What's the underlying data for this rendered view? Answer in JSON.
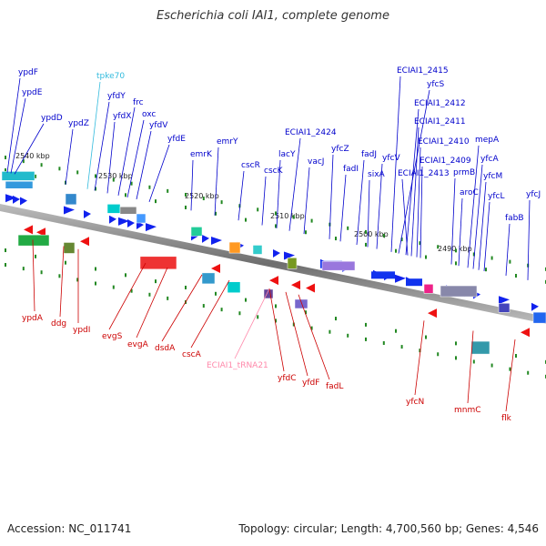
{
  "title": "Escherichia coli IAI1, complete genome",
  "footer": {
    "accession": "Accession: NC_011741",
    "summary": "Topology: circular; Length: 4,700,560 bp; Genes: 4,546"
  },
  "colors": {
    "forward_label": "#0000cc",
    "reverse_label": "#cc0000",
    "trna_label": "#ff88aa",
    "other_label": "#33bbdd",
    "backbone": "#808080",
    "tick": "#228822"
  },
  "scale_labels": [
    "2540 kbp",
    "2530 kbp",
    "2520 kbp",
    "2510 kbp",
    "2500 kbp",
    "2490 kbp"
  ],
  "top_labels": [
    "ypdF",
    "ypdE",
    "ypdD",
    "tpke70",
    "yfdY",
    "ypdZ",
    "yfdX",
    "frc",
    "oxc",
    "yfdV",
    "yfdE",
    "emrK",
    "emrY",
    "cscR",
    "cscK",
    "lacY",
    "ECIAI1_2424",
    "vacJ",
    "yfcZ",
    "fadI",
    "fadJ",
    "yfcV",
    "sixA",
    "ECIAI1_2415",
    "yfcS",
    "ECIAI1_2412",
    "ECIAI1_2411",
    "ECIAI1_2410",
    "ECIAI1_2409",
    "ECIAI1_2413",
    "mepA",
    "yfcA",
    "prmB",
    "yfcM",
    "aroC",
    "yfcL",
    "yfcJ",
    "fabB"
  ],
  "bottom_labels": [
    "ypdA",
    "ddg",
    "ypdI",
    "evgS",
    "evgA",
    "dsdA",
    "cscA",
    "ECIAI1_tRNA21",
    "yfdC",
    "yfdF",
    "fadL",
    "yfcN",
    "mnmC",
    "flk"
  ]
}
